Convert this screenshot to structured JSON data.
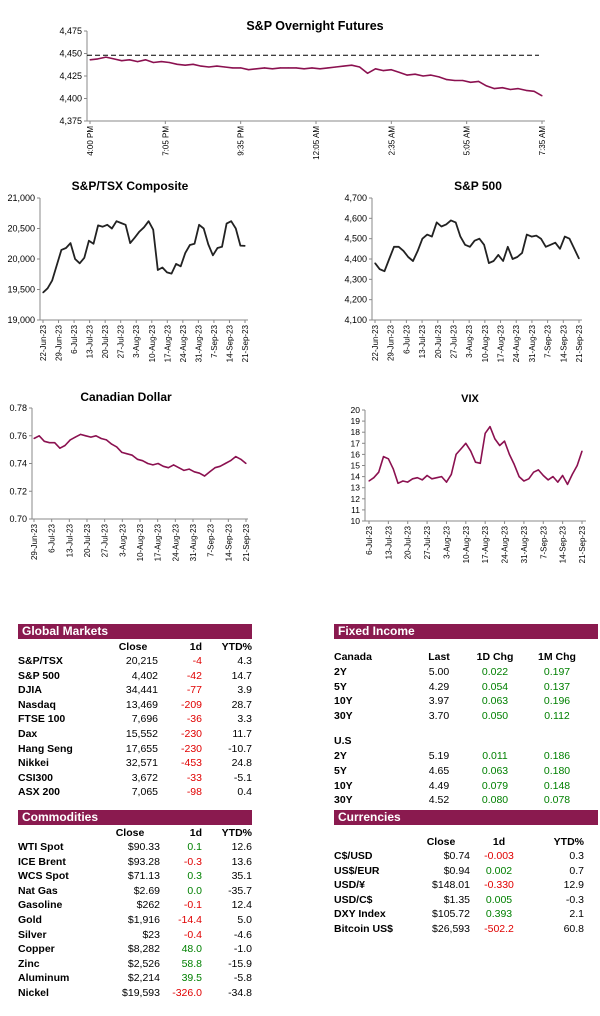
{
  "chart_data": [
    {
      "id": "futures",
      "type": "line",
      "title": "S&P Overnight Futures",
      "ylim": [
        4375,
        4475
      ],
      "yticks": [
        "4,375",
        "4,400",
        "4,425",
        "4,450",
        "4,475"
      ],
      "xticks": [
        "4:00 PM",
        "7:05 PM",
        "9:35 PM",
        "12:05 AM",
        "2:35 AM",
        "5:05 AM",
        "7:35 AM"
      ],
      "reference_line": 4448,
      "color": "#8b1150",
      "values": [
        4443,
        4444,
        4446,
        4444,
        4442,
        4443,
        4441,
        4443,
        4440,
        4441,
        4440,
        4438,
        4437,
        4438,
        4436,
        4435,
        4436,
        4435,
        4434,
        4434,
        4432,
        4433,
        4434,
        4433,
        4434,
        4434,
        4434,
        4433,
        4434,
        4433,
        4434,
        4435,
        4436,
        4437,
        4435,
        4428,
        4433,
        4431,
        4432,
        4429,
        4426,
        4427,
        4425,
        4426,
        4424,
        4421,
        4420,
        4420,
        4418,
        4419,
        4414,
        4411,
        4412,
        4410,
        4411,
        4409,
        4408,
        4403
      ]
    },
    {
      "id": "tsx",
      "type": "line",
      "title": "S&P/TSX Composite",
      "ylim": [
        19000,
        21000
      ],
      "yticks": [
        "19,000",
        "19,500",
        "20,000",
        "20,500",
        "21,000"
      ],
      "xticks": [
        "22-Jun-23",
        "29-Jun-23",
        "6-Jul-23",
        "13-Jul-23",
        "20-Jul-23",
        "27-Jul-23",
        "3-Aug-23",
        "10-Aug-23",
        "17-Aug-23",
        "24-Aug-23",
        "31-Aug-23",
        "7-Sep-23",
        "14-Sep-23",
        "21-Sep-23"
      ],
      "color": "#222222",
      "values": [
        19450,
        19520,
        19650,
        19900,
        20150,
        20180,
        20260,
        20000,
        19930,
        20020,
        20300,
        20250,
        20550,
        20530,
        20560,
        20500,
        20620,
        20590,
        20560,
        20260,
        20350,
        20450,
        20520,
        20620,
        20480,
        19820,
        19860,
        19780,
        19760,
        19920,
        19880,
        20100,
        20230,
        20250,
        20560,
        20500,
        20240,
        20060,
        20180,
        20200,
        20580,
        20620,
        20500,
        20220,
        20215
      ]
    },
    {
      "id": "sp500",
      "type": "line",
      "title": "S&P 500",
      "ylim": [
        4100,
        4700
      ],
      "yticks": [
        "4,100",
        "4,200",
        "4,300",
        "4,400",
        "4,500",
        "4,600",
        "4,700"
      ],
      "xticks": [
        "22-Jun-23",
        "29-Jun-23",
        "6-Jul-23",
        "13-Jul-23",
        "20-Jul-23",
        "27-Jul-23",
        "3-Aug-23",
        "10-Aug-23",
        "17-Aug-23",
        "24-Aug-23",
        "31-Aug-23",
        "7-Sep-23",
        "14-Sep-23",
        "21-Sep-23"
      ],
      "color": "#222222",
      "values": [
        4380,
        4350,
        4340,
        4400,
        4460,
        4460,
        4440,
        4410,
        4390,
        4440,
        4500,
        4520,
        4510,
        4580,
        4560,
        4570,
        4590,
        4580,
        4510,
        4470,
        4460,
        4490,
        4500,
        4470,
        4380,
        4390,
        4420,
        4390,
        4460,
        4400,
        4410,
        4430,
        4520,
        4510,
        4515,
        4500,
        4460,
        4470,
        4480,
        4450,
        4510,
        4500,
        4450,
        4402
      ]
    },
    {
      "id": "cad",
      "type": "line",
      "title": "Canadian Dollar",
      "ylim": [
        0.7,
        0.78
      ],
      "yticks": [
        "0.70",
        "0.72",
        "0.74",
        "0.76",
        "0.78"
      ],
      "xticks": [
        "29-Jun-23",
        "6-Jul-23",
        "13-Jul-23",
        "20-Jul-23",
        "27-Jul-23",
        "3-Aug-23",
        "10-Aug-23",
        "17-Aug-23",
        "24-Aug-23",
        "31-Aug-23",
        "7-Sep-23",
        "14-Sep-23",
        "21-Sep-23"
      ],
      "color": "#8b1150",
      "values": [
        0.758,
        0.76,
        0.756,
        0.755,
        0.755,
        0.751,
        0.753,
        0.757,
        0.759,
        0.761,
        0.76,
        0.759,
        0.76,
        0.758,
        0.757,
        0.754,
        0.752,
        0.748,
        0.747,
        0.746,
        0.743,
        0.742,
        0.74,
        0.739,
        0.74,
        0.738,
        0.737,
        0.739,
        0.737,
        0.735,
        0.736,
        0.734,
        0.733,
        0.731,
        0.734,
        0.737,
        0.738,
        0.74,
        0.742,
        0.745,
        0.743,
        0.74
      ]
    },
    {
      "id": "vix",
      "type": "line",
      "title": "VIX",
      "ylim": [
        10,
        20
      ],
      "yticks": [
        "10",
        "11",
        "12",
        "13",
        "14",
        "15",
        "16",
        "17",
        "18",
        "19",
        "20"
      ],
      "xticks": [
        "6-Jul-23",
        "13-Jul-23",
        "20-Jul-23",
        "27-Jul-23",
        "3-Aug-23",
        "10-Aug-23",
        "17-Aug-23",
        "24-Aug-23",
        "31-Aug-23",
        "7-Sep-23",
        "14-Sep-23",
        "21-Sep-23"
      ],
      "color": "#8b1150",
      "values": [
        13.6,
        13.9,
        14.4,
        15.8,
        15.6,
        14.7,
        13.4,
        13.6,
        13.5,
        13.8,
        13.9,
        13.7,
        14.1,
        13.8,
        13.9,
        14.0,
        13.5,
        14.2,
        16.0,
        16.5,
        17.0,
        16.3,
        15.3,
        15.2,
        17.9,
        18.5,
        17.4,
        16.8,
        17.2,
        16.0,
        15.1,
        14.0,
        13.6,
        13.8,
        14.4,
        14.6,
        14.1,
        13.7,
        14.0,
        13.5,
        14.1,
        13.3,
        14.2,
        15.0,
        16.3
      ]
    }
  ],
  "global_markets": {
    "title": "Global Markets",
    "headers": [
      "Close",
      "1d",
      "YTD%"
    ],
    "rows": [
      {
        "name": "S&P/TSX",
        "close": "20,215",
        "d1": "-4",
        "ytd": "4.3"
      },
      {
        "name": "S&P 500",
        "close": "4,402",
        "d1": "-42",
        "ytd": "14.7"
      },
      {
        "name": "DJIA",
        "close": "34,441",
        "d1": "-77",
        "ytd": "3.9"
      },
      {
        "name": "Nasdaq",
        "close": "13,469",
        "d1": "-209",
        "ytd": "28.7"
      },
      {
        "name": "FTSE 100",
        "close": "7,696",
        "d1": "-36",
        "ytd": "3.3"
      },
      {
        "name": "Dax",
        "close": "15,552",
        "d1": "-230",
        "ytd": "11.7"
      },
      {
        "name": "Hang Seng",
        "close": "17,655",
        "d1": "-230",
        "ytd": "-10.7"
      },
      {
        "name": "Nikkei",
        "close": "32,571",
        "d1": "-453",
        "ytd": "24.8"
      },
      {
        "name": "CSI300",
        "close": "3,672",
        "d1": "-33",
        "ytd": "-5.1"
      },
      {
        "name": "ASX 200",
        "close": "7,065",
        "d1": "-98",
        "ytd": "0.4"
      }
    ]
  },
  "fixed_income": {
    "title": "Fixed Income",
    "canada": {
      "label": "Canada",
      "headers": [
        "Last",
        "1D Chg",
        "1M Chg"
      ],
      "rows": [
        {
          "name": "2Y",
          "last": "5.00",
          "d1": "0.022",
          "m1": "0.197"
        },
        {
          "name": "5Y",
          "last": "4.29",
          "d1": "0.054",
          "m1": "0.137"
        },
        {
          "name": "10Y",
          "last": "3.97",
          "d1": "0.063",
          "m1": "0.196"
        },
        {
          "name": "30Y",
          "last": "3.70",
          "d1": "0.050",
          "m1": "0.112"
        }
      ]
    },
    "us": {
      "label": "U.S",
      "rows": [
        {
          "name": "2Y",
          "last": "5.19",
          "d1": "0.011",
          "m1": "0.186"
        },
        {
          "name": "5Y",
          "last": "4.65",
          "d1": "0.063",
          "m1": "0.180"
        },
        {
          "name": "10Y",
          "last": "4.49",
          "d1": "0.079",
          "m1": "0.148"
        },
        {
          "name": "30Y",
          "last": "4.52",
          "d1": "0.080",
          "m1": "0.078"
        }
      ]
    }
  },
  "commodities": {
    "title": "Commodities",
    "headers": [
      "Close",
      "1d",
      "YTD%"
    ],
    "rows": [
      {
        "name": "WTI Spot",
        "close": "$90.33",
        "d1": "0.1",
        "ytd": "12.6"
      },
      {
        "name": "ICE Brent",
        "close": "$93.28",
        "d1": "-0.3",
        "ytd": "13.6"
      },
      {
        "name": "WCS Spot",
        "close": "$71.13",
        "d1": "0.3",
        "ytd": "35.1"
      },
      {
        "name": "Nat Gas",
        "close": "$2.69",
        "d1": "0.0",
        "ytd": "-35.7"
      },
      {
        "name": "Gasoline",
        "close": "$262",
        "d1": "-0.1",
        "ytd": "12.4"
      },
      {
        "name": "Gold",
        "close": "$1,916",
        "d1": "-14.4",
        "ytd": "5.0"
      },
      {
        "name": "Silver",
        "close": "$23",
        "d1": "-0.4",
        "ytd": "-4.6"
      },
      {
        "name": "Copper",
        "close": "$8,282",
        "d1": "48.0",
        "ytd": "-1.0"
      },
      {
        "name": "Zinc",
        "close": "$2,526",
        "d1": "58.8",
        "ytd": "-15.9"
      },
      {
        "name": "Aluminum",
        "close": "$2,214",
        "d1": "39.5",
        "ytd": "-5.8"
      },
      {
        "name": "Nickel",
        "close": "$19,593",
        "d1": "-326.0",
        "ytd": "-34.8"
      }
    ]
  },
  "currencies": {
    "title": "Currencies",
    "headers": [
      "Close",
      "1d",
      "YTD%"
    ],
    "rows": [
      {
        "name": "C$/USD",
        "close": "$0.74",
        "d1": "-0.003",
        "ytd": "0.3"
      },
      {
        "name": "US$/EUR",
        "close": "$0.94",
        "d1": "0.002",
        "ytd": "0.7"
      },
      {
        "name": "USD/¥",
        "close": "$148.01",
        "d1": "-0.330",
        "ytd": "12.9"
      },
      {
        "name": "USD/C$",
        "close": "$1.35",
        "d1": "0.005",
        "ytd": "-0.3"
      },
      {
        "name": "DXY Index",
        "close": "$105.72",
        "d1": "0.393",
        "ytd": "2.1"
      },
      {
        "name": "Bitcoin US$",
        "close": "$26,593",
        "d1": "-502.2",
        "ytd": "60.8"
      }
    ]
  }
}
